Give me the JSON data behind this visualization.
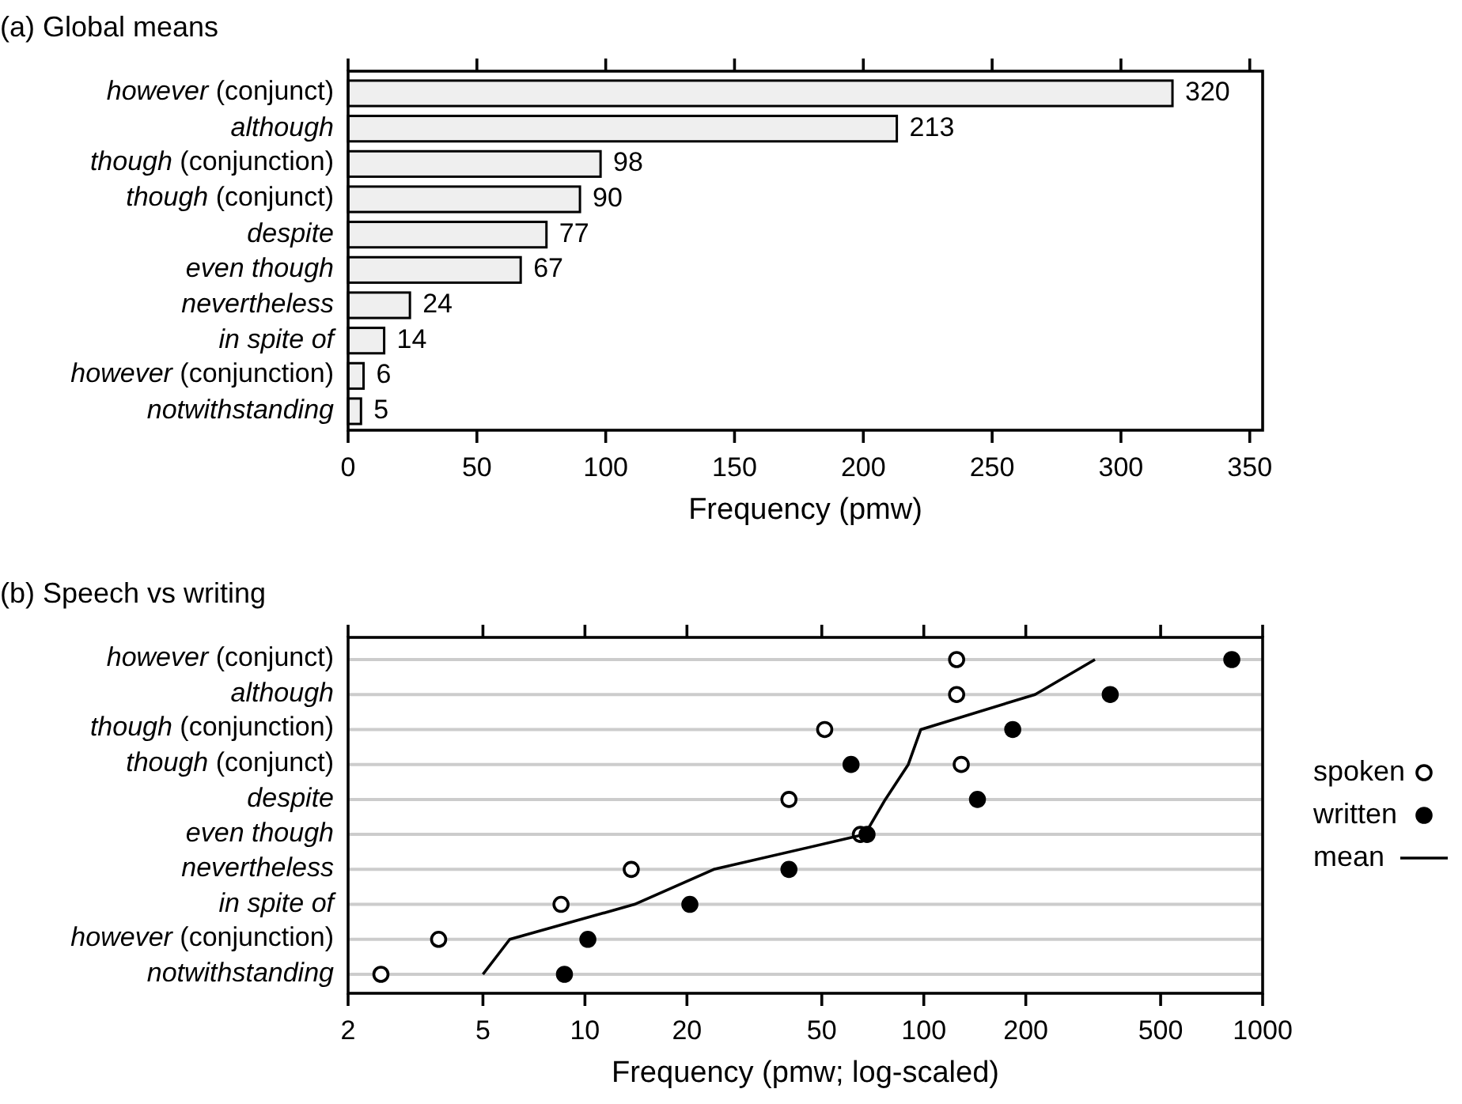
{
  "chart_data": [
    {
      "type": "bar",
      "title": "(a) Global means",
      "orientation": "horizontal",
      "xlabel": "Frequency (pmw)",
      "categories": [
        "however (conjunct)",
        "although",
        "though (conjunction)",
        "though (conjunct)",
        "despite",
        "even though",
        "nevertheless",
        "in spite of",
        "however (conjunction)",
        "notwithstanding"
      ],
      "values": [
        320,
        213,
        98,
        90,
        77,
        67,
        24,
        14,
        6,
        5
      ],
      "color": "#efefef",
      "data_labels": true,
      "xlim": [
        0,
        355
      ],
      "xticks": [
        0,
        50,
        100,
        150,
        200,
        250,
        300,
        350
      ],
      "grid": false,
      "legend": false
    },
    {
      "type": "scatter",
      "title": "(b) Speech vs writing",
      "xlabel": "Frequency (pmw; log-scaled)",
      "orientation": "horizontal",
      "log": "x",
      "categories": [
        "however (conjunct)",
        "although",
        "though (conjunction)",
        "though (conjunct)",
        "despite",
        "even though",
        "nevertheless",
        "in spite of",
        "however (conjunction)",
        "notwithstanding"
      ],
      "xlim": [
        2,
        1000
      ],
      "xticks": [
        2,
        5,
        10,
        20,
        50,
        100,
        200,
        500,
        1000
      ],
      "grid": "y",
      "legend": "right",
      "series": [
        {
          "name": "spoken",
          "type": "scatter",
          "marker": "circle",
          "color": "#ffffff",
          "values": [
            125,
            125,
            51,
            129,
            40,
            65,
            13.7,
            8.5,
            3.7,
            2.5
          ]
        },
        {
          "name": "written",
          "type": "scatter",
          "marker": "circle",
          "color": "#000000",
          "values": [
            811,
            355,
            183,
            61,
            144,
            68,
            40,
            20.4,
            10.2,
            8.7
          ]
        },
        {
          "name": "mean",
          "type": "line",
          "marker": "none",
          "color": "#000000",
          "values": [
            320,
            213,
            98,
            90,
            77,
            67,
            24,
            14,
            6,
            5
          ]
        }
      ]
    }
  ]
}
